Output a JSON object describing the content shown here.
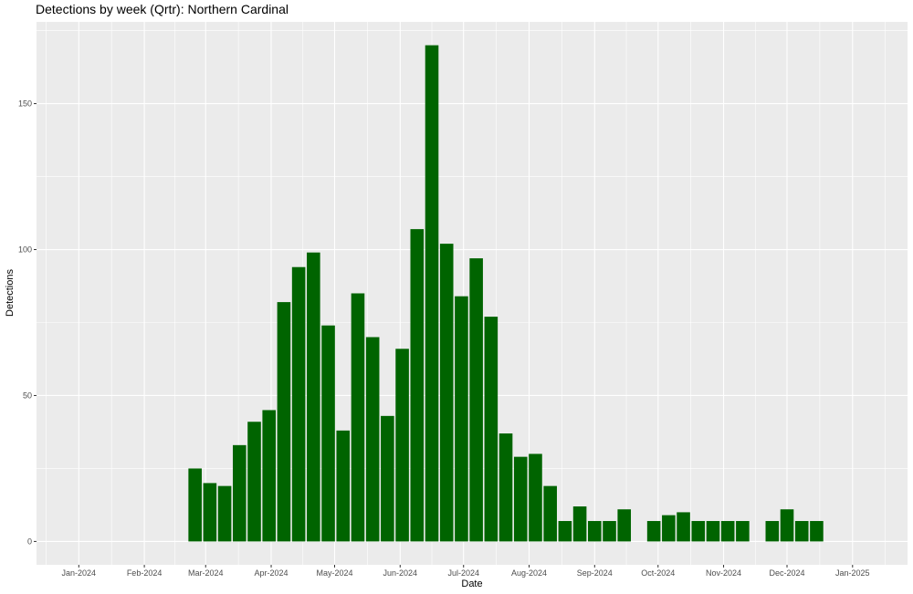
{
  "chart_data": {
    "type": "bar",
    "title": "Detections by week (Qrtr): Northern Cardinal",
    "xlabel": "Date",
    "ylabel": "Detections",
    "x_ticks": [
      "Jan-2024",
      "Feb-2024",
      "Mar-2024",
      "Apr-2024",
      "May-2024",
      "Jun-2024",
      "Jul-2024",
      "Aug-2024",
      "Sep-2024",
      "Oct-2024",
      "Nov-2024",
      "Dec-2024",
      "Jan-2025"
    ],
    "y_ticks": [
      0,
      50,
      100,
      150
    ],
    "ylim": [
      -8,
      178
    ],
    "xlim": [
      "2023-12-12",
      "2025-01-27"
    ],
    "bar_color": "#006400",
    "panel_background": "#ebebeb",
    "grid": true,
    "series": [
      {
        "x": [
          "2024-02-25",
          "2024-03-03",
          "2024-03-10",
          "2024-03-17",
          "2024-03-24",
          "2024-03-31",
          "2024-04-07",
          "2024-04-14",
          "2024-04-21",
          "2024-04-28",
          "2024-05-05",
          "2024-05-12",
          "2024-05-19",
          "2024-05-26",
          "2024-06-02",
          "2024-06-09",
          "2024-06-16",
          "2024-06-23",
          "2024-06-30",
          "2024-07-07",
          "2024-07-14",
          "2024-07-21",
          "2024-07-28",
          "2024-08-04",
          "2024-08-11",
          "2024-08-18",
          "2024-08-25",
          "2024-09-01",
          "2024-09-08",
          "2024-09-15",
          "2024-09-29",
          "2024-10-06",
          "2024-10-13",
          "2024-10-20",
          "2024-10-27",
          "2024-11-03",
          "2024-11-10",
          "2024-11-24",
          "2024-12-01",
          "2024-12-08",
          "2024-12-15"
        ],
        "values": [
          25,
          20,
          19,
          33,
          41,
          45,
          82,
          94,
          99,
          74,
          38,
          85,
          70,
          43,
          66,
          107,
          170,
          102,
          84,
          97,
          77,
          37,
          29,
          30,
          19,
          7,
          12,
          7,
          7,
          11,
          7,
          9,
          10,
          7,
          7,
          7,
          7,
          7,
          11,
          7,
          7
        ]
      }
    ]
  }
}
